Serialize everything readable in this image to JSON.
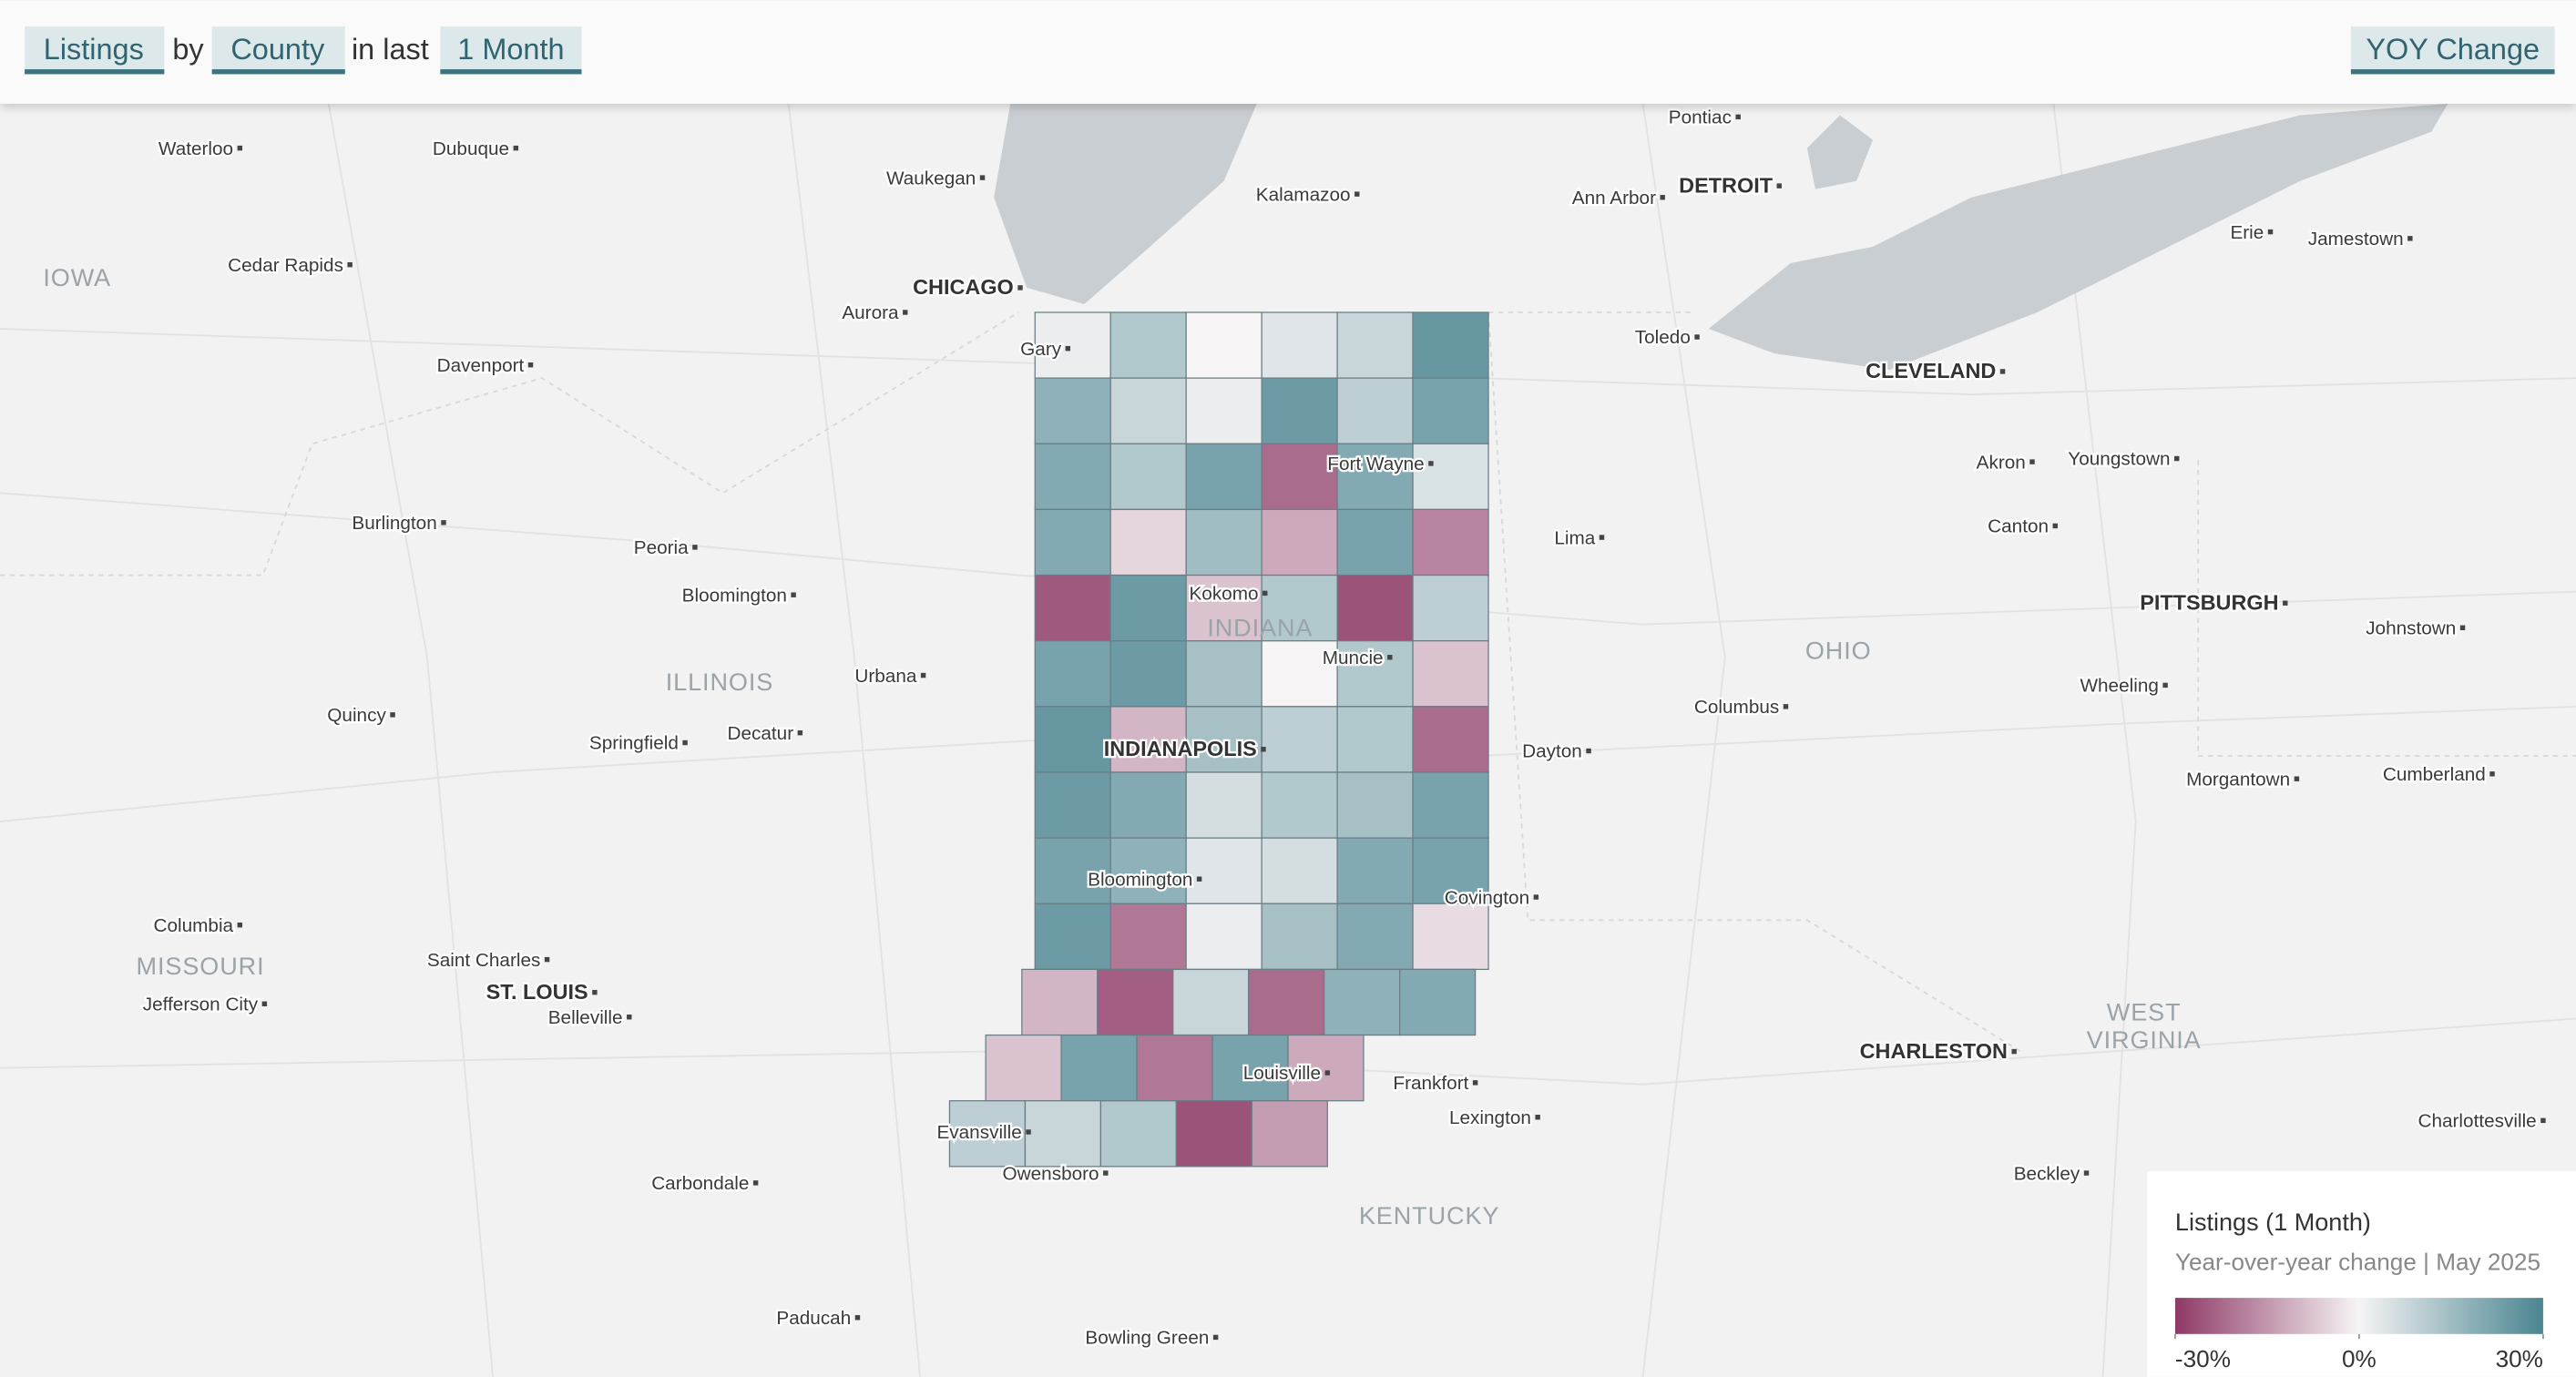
{
  "header": {
    "metric": "Listings",
    "by": "by",
    "group": "County",
    "in_last": "in last",
    "period": "1 Month",
    "mode": "YOY Change"
  },
  "states": [
    [
      "IOWA"
    ],
    [
      "ILLINOIS"
    ],
    [
      "INDIANA"
    ],
    [
      "OHIO"
    ],
    [
      "MISSOURI"
    ],
    [
      "KENTUCKY"
    ],
    [
      "WEST",
      "VIRGINIA"
    ]
  ],
  "cities": [
    "Waterloo",
    "Dubuque",
    "Waukegan",
    "Kalamazoo",
    "Pontiac",
    "Ann Arbor",
    "DETROIT",
    "Erie",
    "Jamestown",
    "Cedar Rapids",
    "CHICAGO",
    "Aurora",
    "Toledo",
    "CLEVELAND",
    "Gary",
    "Davenport",
    "Fort Wayne",
    "Akron",
    "Youngstown",
    "Burlington",
    "Peoria",
    "Lima",
    "Canton",
    "Bloomington",
    "Kokomo",
    "Muncie",
    "PITTSBURGH",
    "Johnstown",
    "Urbana",
    "Quincy",
    "Springfield",
    "Decatur",
    "INDIANAPOLIS",
    "Dayton",
    "Columbus",
    "Wheeling",
    "Morgantown",
    "Cumberland",
    "Bloomington",
    "Covington",
    "Columbia",
    "Saint Charles",
    "ST. LOUIS",
    "Jefferson City",
    "Belleville",
    "Louisville",
    "Frankfort",
    "Lexington",
    "CHARLESTON",
    "Charlottesville",
    "Evansville",
    "Owensboro",
    "Carbondale",
    "Beckley",
    "Paducah",
    "Bowling Green"
  ],
  "county_changes": [
    [
      2,
      12,
      0,
      4,
      8,
      25
    ],
    [
      18,
      8,
      2,
      24,
      10,
      22
    ],
    [
      20,
      12,
      22,
      -22,
      20,
      5
    ],
    [
      20,
      -5,
      15,
      -12,
      22,
      -18
    ],
    [
      -25,
      24,
      -8,
      12,
      -26,
      10
    ],
    [
      22,
      24,
      14,
      0,
      12,
      -8
    ],
    [
      25,
      -10,
      14,
      10,
      12,
      -22
    ],
    [
      24,
      20,
      6,
      12,
      14,
      22
    ],
    [
      22,
      18,
      4,
      6,
      20,
      22
    ],
    [
      24,
      -20,
      2,
      14,
      20,
      -4
    ],
    [
      -10,
      -24,
      8,
      -22,
      18,
      20
    ],
    [
      -8,
      22,
      -20,
      22,
      -12
    ],
    [
      10,
      8,
      12,
      -26,
      -14
    ]
  ],
  "legend": {
    "title": "Listings (1 Month)",
    "subtitle": "Year-over-year change | May 2025",
    "range": [
      -30,
      30
    ],
    "colors": {
      "low": "#8e3a66",
      "mid": "#f6f4f5",
      "high": "#4a8591"
    },
    "ticks": [
      {
        "value": -30,
        "label": "-30%"
      },
      {
        "value": 0,
        "label": "0%"
      },
      {
        "value": 30,
        "label": "30%"
      }
    ]
  }
}
